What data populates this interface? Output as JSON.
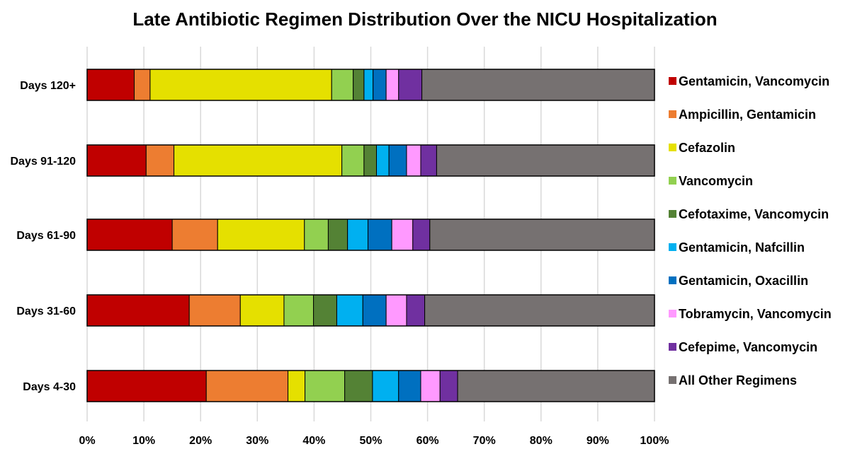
{
  "chart_data": {
    "type": "bar",
    "orientation": "horizontal",
    "stacked": true,
    "title": "Late Antibiotic Regimen Distribution Over the NICU Hospitalization",
    "xlabel": "",
    "ylabel": "",
    "xlim": [
      0,
      100
    ],
    "x_ticks": [
      "0%",
      "10%",
      "20%",
      "30%",
      "40%",
      "50%",
      "60%",
      "70%",
      "80%",
      "90%",
      "100%"
    ],
    "grid": true,
    "legend_position": "right",
    "categories": [
      "Days 120+",
      "Days 91-120",
      "Days 61-90",
      "Days 31-60",
      "Days 4-30"
    ],
    "series": [
      {
        "name": "Gentamicin, Vancomycin",
        "color": "#c00000",
        "values": [
          8.3,
          10.4,
          15.0,
          18.0,
          21.0
        ]
      },
      {
        "name": "Ampicillin, Gentamicin",
        "color": "#ed7d31",
        "values": [
          2.8,
          4.9,
          8.0,
          9.0,
          14.4
        ]
      },
      {
        "name": "Cefazolin",
        "color": "#e5e000",
        "values": [
          32.0,
          29.6,
          15.3,
          7.7,
          3.0
        ]
      },
      {
        "name": "Vancomycin",
        "color": "#92d050",
        "values": [
          3.8,
          3.9,
          4.2,
          5.2,
          7.0
        ]
      },
      {
        "name": "Cefotaxime, Vancomycin",
        "color": "#548235",
        "values": [
          1.9,
          2.2,
          3.4,
          4.1,
          4.9
        ]
      },
      {
        "name": "Gentamicin, Nafcillin",
        "color": "#00b0f0",
        "values": [
          1.6,
          2.2,
          3.6,
          4.6,
          4.6
        ]
      },
      {
        "name": "Gentamicin, Oxacillin",
        "color": "#0070c0",
        "values": [
          2.3,
          3.1,
          4.2,
          4.1,
          3.9
        ]
      },
      {
        "name": "Tobramycin, Vancomycin",
        "color": "#ff99ff",
        "values": [
          2.2,
          2.5,
          3.7,
          3.6,
          3.4
        ]
      },
      {
        "name": "Cefepime, Vancomycin",
        "color": "#7030a0",
        "values": [
          4.1,
          2.8,
          3.0,
          3.2,
          3.1
        ]
      },
      {
        "name": "All Other Regimens",
        "color": "#767171",
        "values": [
          41.0,
          38.4,
          39.6,
          40.5,
          34.7
        ]
      }
    ]
  }
}
